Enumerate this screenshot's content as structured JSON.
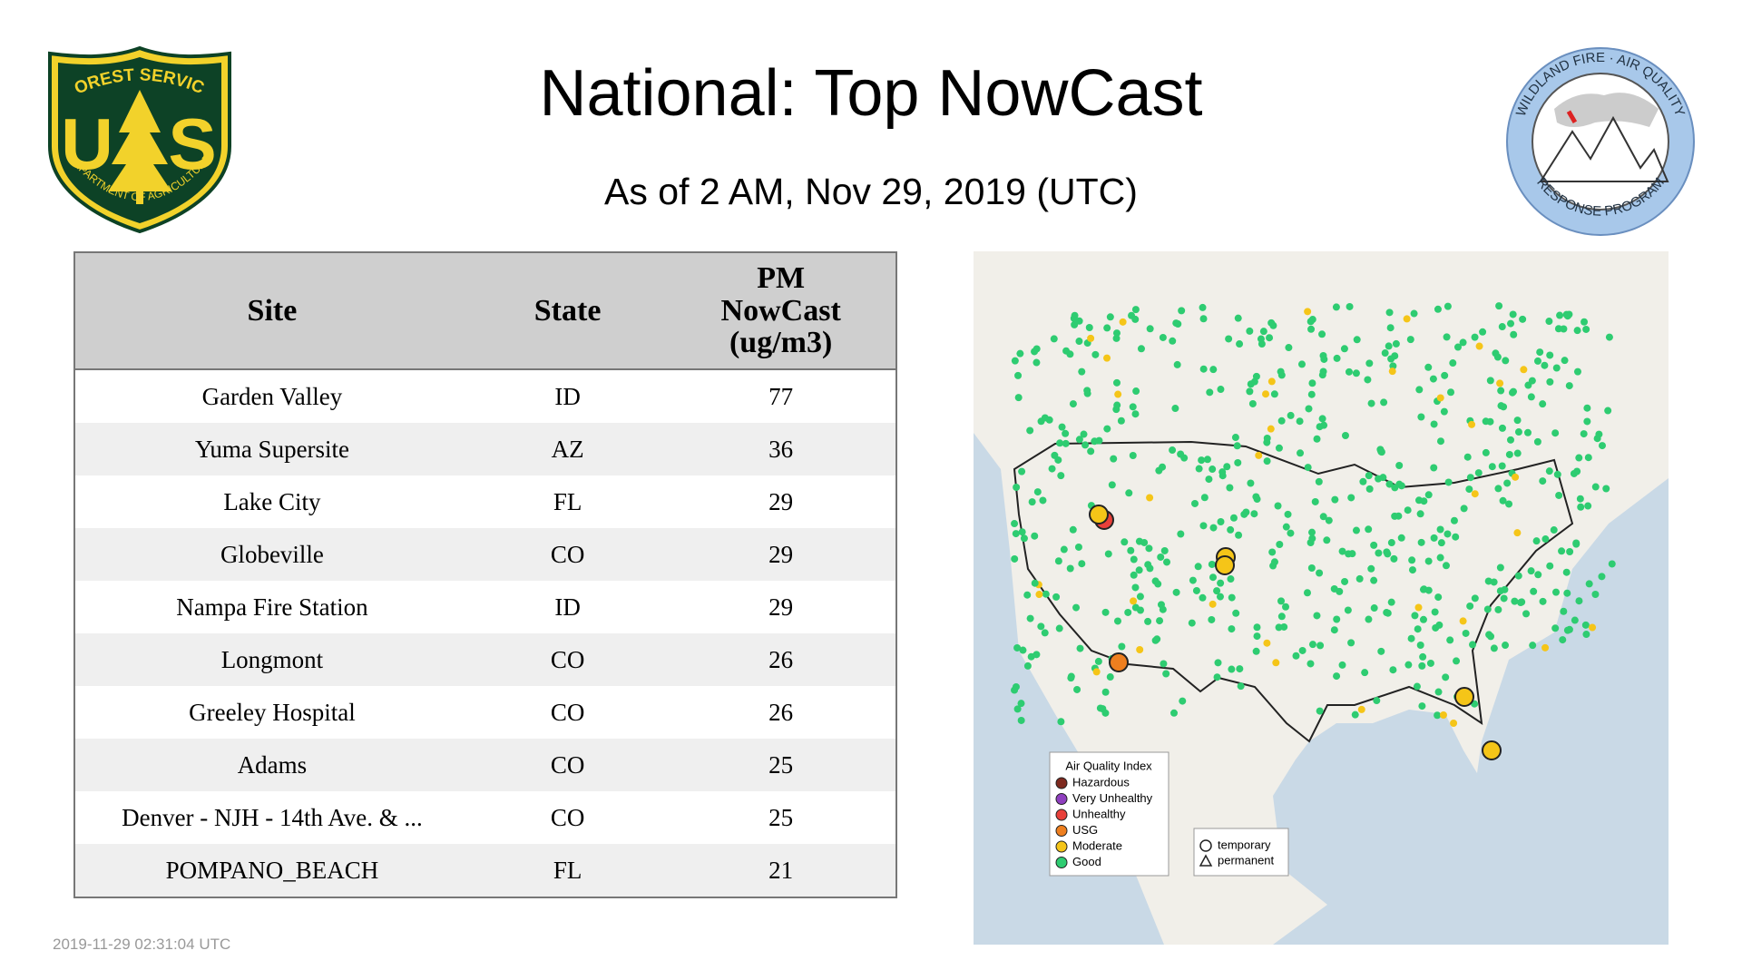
{
  "header": {
    "title": "National: Top NowCast",
    "subtitle": "As of  2 AM, Nov 29, 2019 (UTC)"
  },
  "left_logo": {
    "top": "FOREST SERVICE",
    "letter_left": "U",
    "letter_right": "S",
    "bottom": "DEPARTMENT OF AGRICULTURE"
  },
  "right_logo": {
    "top": "WILDLAND FIRE · AIR QUALITY",
    "bottom": "RESPONSE PROGRAM"
  },
  "table": {
    "columns": [
      "Site",
      "State",
      "PM NowCast (ug/m3)"
    ],
    "rows": [
      [
        "Garden Valley",
        "ID",
        77
      ],
      [
        "Yuma Supersite",
        "AZ",
        36
      ],
      [
        "Lake City",
        "FL",
        29
      ],
      [
        "Globeville",
        "CO",
        29
      ],
      [
        "Nampa Fire Station",
        "ID",
        29
      ],
      [
        "Longmont",
        "CO",
        26
      ],
      [
        "Greeley Hospital",
        "CO",
        26
      ],
      [
        "Adams",
        "CO",
        25
      ],
      [
        "Denver - NJH - 14th Ave. & ...",
        "CO",
        25
      ],
      [
        "POMPANO_BEACH",
        "FL",
        21
      ]
    ]
  },
  "map": {
    "legend_title": "Air Quality Index",
    "legend": [
      {
        "label": "Hazardous",
        "color": "#7e2a1f"
      },
      {
        "label": "Very Unhealthy",
        "color": "#8f3fbf"
      },
      {
        "label": "Unhealthy",
        "color": "#e8403a"
      },
      {
        "label": "USG",
        "color": "#ee7f1f"
      },
      {
        "label": "Moderate",
        "color": "#f5c518"
      },
      {
        "label": "Good",
        "color": "#2ecc71"
      }
    ],
    "shapes": [
      "temporary",
      "permanent"
    ]
  },
  "footer": {
    "timestamp": "2019-11-29 02:31:04 UTC"
  }
}
